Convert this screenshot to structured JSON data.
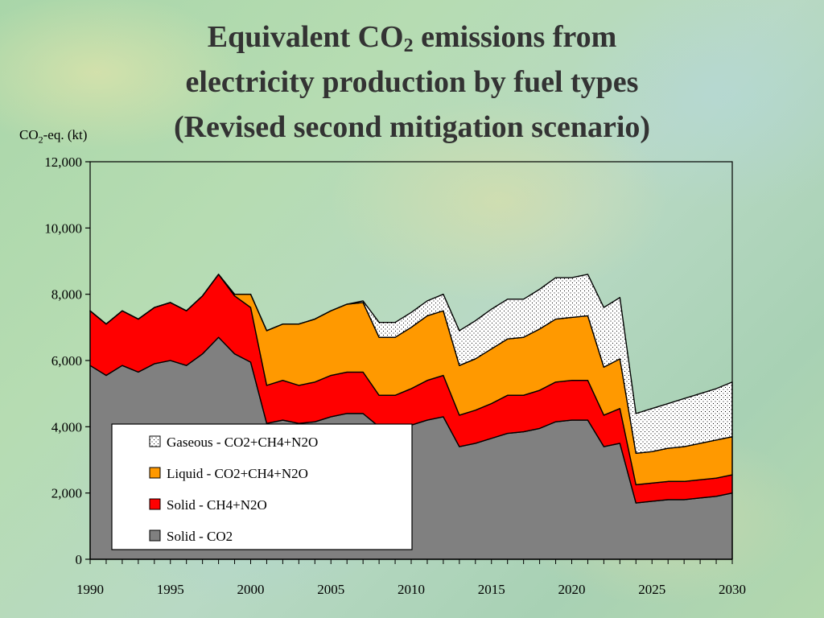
{
  "title": {
    "line1_pre": "Equivalent CO",
    "line1_sub": "2",
    "line1_post": " emissions from",
    "line2": "electricity production by fuel types",
    "line3": "(Revised second mitigation scenario)"
  },
  "chart_data": {
    "type": "area",
    "stacked": true,
    "ylabel_pre": "CO",
    "ylabel_sub": "2",
    "ylabel_post": "-eq. (kt)",
    "xlabel": "",
    "ylim": [
      0,
      12000
    ],
    "xlim": [
      1990,
      2030
    ],
    "y_ticks": [
      0,
      2000,
      4000,
      6000,
      8000,
      10000,
      12000
    ],
    "y_tick_labels": [
      "0",
      "2,000",
      "4,000",
      "6,000",
      "8,000",
      "10,000",
      "12,000"
    ],
    "x_ticks": [
      1990,
      1995,
      2000,
      2005,
      2010,
      2015,
      2020,
      2025,
      2030
    ],
    "x_tick_labels": [
      "1990",
      "1995",
      "2000",
      "2005",
      "2010",
      "2015",
      "2020",
      "2025",
      "2030"
    ],
    "grid": false,
    "legend_position": "lower-left",
    "x": [
      1990,
      1991,
      1992,
      1993,
      1994,
      1995,
      1996,
      1997,
      1998,
      1999,
      2000,
      2001,
      2002,
      2003,
      2004,
      2005,
      2006,
      2007,
      2008,
      2009,
      2010,
      2011,
      2012,
      2013,
      2014,
      2015,
      2016,
      2017,
      2018,
      2019,
      2020,
      2021,
      2022,
      2023,
      2024,
      2025,
      2026,
      2027,
      2028,
      2029,
      2030
    ],
    "series": [
      {
        "name": "Solid - CO2",
        "color": "#808080",
        "pattern": "solid",
        "values": [
          5850,
          5550,
          5850,
          5650,
          5900,
          6000,
          5850,
          6200,
          6700,
          6200,
          5950,
          4100,
          4200,
          4100,
          4150,
          4300,
          4400,
          4400,
          4000,
          4000,
          4050,
          4200,
          4300,
          3400,
          3500,
          3650,
          3800,
          3850,
          3950,
          4150,
          4200,
          4200,
          3400,
          3500,
          1700,
          1750,
          1800,
          1800,
          1850,
          1900,
          2000
        ]
      },
      {
        "name": "Solid - CH4+N2O",
        "color": "#ff0000",
        "pattern": "solid",
        "values": [
          1650,
          1550,
          1650,
          1600,
          1700,
          1750,
          1650,
          1750,
          1900,
          1750,
          1650,
          1150,
          1200,
          1150,
          1200,
          1250,
          1250,
          1250,
          950,
          950,
          1100,
          1200,
          1250,
          950,
          1000,
          1050,
          1150,
          1100,
          1150,
          1200,
          1200,
          1200,
          950,
          1050,
          550,
          550,
          550,
          550,
          550,
          550,
          550
        ]
      },
      {
        "name": "Liquid - CO2+CH4+N2O",
        "color": "#ff9900",
        "pattern": "solid",
        "values": [
          0,
          0,
          0,
          0,
          0,
          0,
          0,
          0,
          0,
          50,
          400,
          1650,
          1700,
          1850,
          1900,
          1950,
          2050,
          2100,
          1750,
          1750,
          1850,
          1950,
          1950,
          1500,
          1550,
          1650,
          1700,
          1750,
          1850,
          1900,
          1900,
          1950,
          1450,
          1500,
          950,
          950,
          1000,
          1050,
          1100,
          1150,
          1150
        ]
      },
      {
        "name": "Gaseous - CO2+CH4+N2O",
        "color": "#ffffff",
        "pattern": "dots",
        "values": [
          0,
          0,
          0,
          0,
          0,
          0,
          0,
          0,
          0,
          0,
          0,
          0,
          0,
          0,
          0,
          0,
          0,
          50,
          450,
          450,
          450,
          450,
          500,
          1050,
          1150,
          1200,
          1200,
          1150,
          1200,
          1250,
          1200,
          1250,
          1800,
          1850,
          1200,
          1300,
          1350,
          1450,
          1500,
          1550,
          1650
        ]
      }
    ]
  }
}
